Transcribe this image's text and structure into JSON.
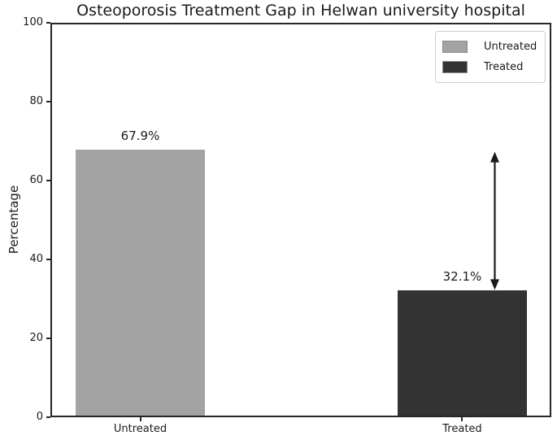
{
  "chart_data": {
    "type": "bar",
    "title": "Osteoporosis Treatment Gap in Helwan university hospital",
    "xlabel": "",
    "ylabel": "Percentage",
    "ylim": [
      0,
      100
    ],
    "yticks": [
      0,
      20,
      40,
      60,
      80,
      100
    ],
    "categories": [
      "Untreated",
      "Treated"
    ],
    "values": [
      67.9,
      32.1
    ],
    "bar_labels": [
      "67.9%",
      "32.1%"
    ],
    "bar_colors": [
      "#a3a3a3",
      "#333333"
    ],
    "grid": false,
    "legend": {
      "position": "upper right",
      "entries": [
        {
          "label": "Untreated",
          "color": "#a3a3a3"
        },
        {
          "label": "Treated",
          "color": "#333333"
        }
      ]
    },
    "annotation": {
      "type": "double-headed-arrow",
      "near_category": "Treated",
      "from_value": 67.9,
      "to_value": 32.1,
      "color": "#1a1a1a"
    }
  }
}
